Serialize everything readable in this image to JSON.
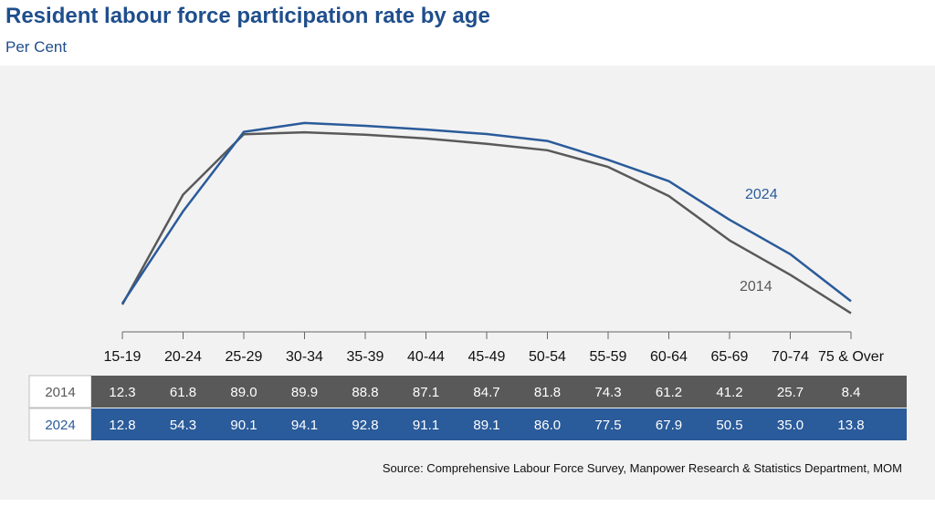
{
  "title": "Resident labour force participation rate by age",
  "subtitle": "Per Cent",
  "source": "Source: Comprehensive Labour Force Survey, Manpower Research & Statistics Department, MOM",
  "colors": {
    "series_2014": "#595959",
    "series_2024": "#2a5b9a",
    "background": "#f2f2f2"
  },
  "chart_data": {
    "type": "line",
    "categories": [
      "15-19",
      "20-24",
      "25-29",
      "30-34",
      "35-39",
      "40-44",
      "45-49",
      "50-54",
      "55-59",
      "60-64",
      "65-69",
      "70-74",
      "75 & Over"
    ],
    "series": [
      {
        "name": "2014",
        "values": [
          12.3,
          61.8,
          89.0,
          89.9,
          88.8,
          87.1,
          84.7,
          81.8,
          74.3,
          61.2,
          41.2,
          25.7,
          8.4
        ]
      },
      {
        "name": "2024",
        "values": [
          12.8,
          54.3,
          90.1,
          94.1,
          92.8,
          91.1,
          89.1,
          86.0,
          77.5,
          67.9,
          50.5,
          35.0,
          13.8
        ]
      }
    ],
    "ylim": [
      0,
      100
    ],
    "grid": false,
    "legend": "data table below chart",
    "table_rows": [
      {
        "label": "2014",
        "values": [
          "12.3",
          "61.8",
          "89.0",
          "89.9",
          "88.8",
          "87.1",
          "84.7",
          "81.8",
          "74.3",
          "61.2",
          "41.2",
          "25.7",
          "8.4"
        ]
      },
      {
        "label": "2024",
        "values": [
          "12.8",
          "54.3",
          "90.1",
          "94.1",
          "92.8",
          "91.1",
          "89.1",
          "86.0",
          "77.5",
          "67.9",
          "50.5",
          "35.0",
          "13.8"
        ]
      }
    ]
  }
}
